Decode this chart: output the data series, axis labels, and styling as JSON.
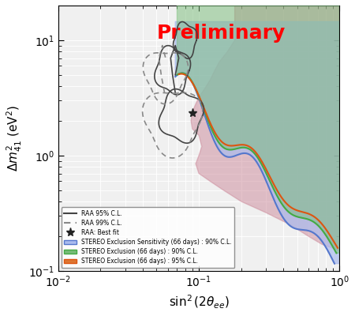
{
  "title": "Preliminary",
  "title_color": "red",
  "xlabel": "sin$^2$(2$\\theta_{ee}$)",
  "ylabel": "$\\Delta m^2_{41}$ (eV$^2$)",
  "xlim": [
    0.01,
    1.0
  ],
  "ylim": [
    0.1,
    20.0
  ],
  "background_color": "#f5f5f5",
  "grid_color": "white",
  "legend_labels": [
    "RAA 95% C.L.",
    "RAA 99% C.L.",
    "RAA: Best fit",
    "STEREO Exclusion Sensitivity (66 days) : 90% C.L.",
    "STEREO Exclusion (66 days) : 90% C.L.",
    "STEREO Exclusion (66 days) : 95% C.L."
  ],
  "legend_colors": [
    "#555555",
    "#888888",
    "#000000",
    "#6699cc",
    "#66bb66",
    "#ee6633"
  ],
  "raa_best_fit": [
    0.09,
    2.35
  ],
  "blue_fill_color": "#aabbee",
  "green_fill_color": "#88cc88",
  "orange_fill_color": "#dd7733",
  "red_fill_color": "#cc8899"
}
